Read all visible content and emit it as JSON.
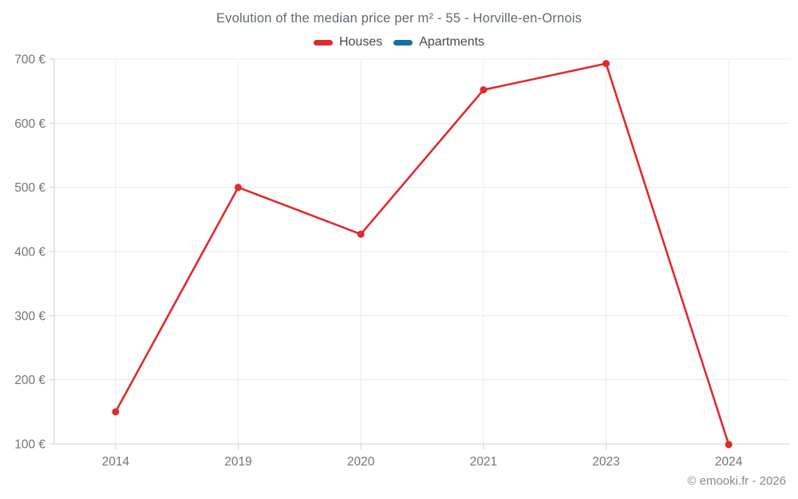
{
  "header": {
    "title": "Evolution of the median price per m² - 55 - Horville-en-Ornois"
  },
  "footer": {
    "copyright": "© emooki.fr - 2026"
  },
  "chart_data": {
    "type": "line",
    "title": "Evolution of the median price per m² - 55 - Horville-en-Ornois",
    "categories": [
      "2014",
      "2019",
      "2020",
      "2021",
      "2023",
      "2024"
    ],
    "series": [
      {
        "name": "Houses",
        "color": "#df2b2b",
        "values": [
          150,
          500,
          427,
          652,
          693,
          99
        ]
      },
      {
        "name": "Apartments",
        "color": "#1172a2",
        "values": []
      }
    ],
    "xlabel": "",
    "ylabel": "",
    "ylim": [
      100,
      700
    ],
    "y_ticks": [
      100,
      200,
      300,
      400,
      500,
      600,
      700
    ],
    "y_tick_suffix": " €",
    "grid": true,
    "legend_position": "top"
  },
  "colors": {
    "background": "#ffffff",
    "grid": "#ebebeb",
    "axis": "#cfcfcf",
    "tick_text": "#757575",
    "title_text": "#5f6b72",
    "legend_text": "#434b50",
    "copyright_text": "#8a8a8a"
  }
}
